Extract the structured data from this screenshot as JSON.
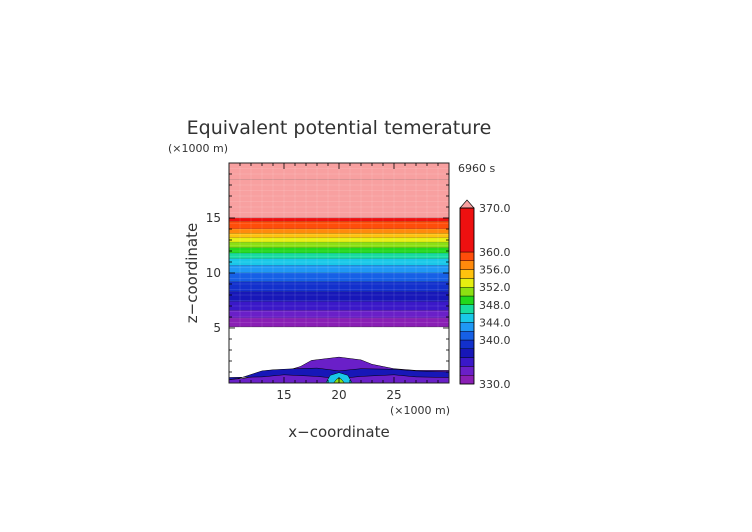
{
  "chart_data": {
    "type": "heatmap",
    "title": "Equivalent potential temerature",
    "time_label": "6960 s",
    "y_unit": "(×1000 m)",
    "x_unit": "(×1000 m)",
    "xlabel": "x−coordinate",
    "ylabel": "z−coordinate",
    "xlim": [
      10,
      30
    ],
    "ylim": [
      0,
      20
    ],
    "x_ticks": [
      15,
      20,
      25
    ],
    "y_ticks": [
      5,
      10,
      15
    ],
    "colorbar": {
      "min": 330,
      "max": 370,
      "tick_values": [
        330,
        340,
        344,
        348,
        352,
        356,
        360,
        370
      ],
      "tick_labels": [
        "330.0",
        "340.0",
        "344.0",
        "348.0",
        "352.0",
        "356.0",
        "360.0",
        "370.0"
      ],
      "levels": [
        {
          "from": 330,
          "to": 332,
          "color": "#8a1fb5"
        },
        {
          "from": 332,
          "to": 334,
          "color": "#6a1fc8"
        },
        {
          "from": 334,
          "to": 336,
          "color": "#3a18c8"
        },
        {
          "from": 336,
          "to": 338,
          "color": "#1717b8"
        },
        {
          "from": 338,
          "to": 340,
          "color": "#1230cc"
        },
        {
          "from": 340,
          "to": 342,
          "color": "#1660e6"
        },
        {
          "from": 342,
          "to": 344,
          "color": "#1f98f5"
        },
        {
          "from": 344,
          "to": 346,
          "color": "#19c8e8"
        },
        {
          "from": 346,
          "to": 348,
          "color": "#17dca0"
        },
        {
          "from": 348,
          "to": 350,
          "color": "#22d81c"
        },
        {
          "from": 350,
          "to": 352,
          "color": "#8ce012"
        },
        {
          "from": 352,
          "to": 354,
          "color": "#e6ee10"
        },
        {
          "from": 354,
          "to": 356,
          "color": "#ffc20e"
        },
        {
          "from": 356,
          "to": 358,
          "color": "#ff8a0c"
        },
        {
          "from": 358,
          "to": 360,
          "color": "#ff4d0a"
        },
        {
          "from": 360,
          "to": 370,
          "color": "#ee1010"
        },
        {
          "from": 370,
          "to": 380,
          "color": "#f8a0a0"
        }
      ]
    },
    "vertical_bands": [
      {
        "z_from": 18.5,
        "z_to": 20.0,
        "value": 371
      },
      {
        "z_from": 15.0,
        "z_to": 18.5,
        "value": 371
      },
      {
        "z_from": 14.7,
        "z_to": 15.0,
        "value": 362
      },
      {
        "z_from": 14.0,
        "z_to": 14.7,
        "value": 359
      },
      {
        "z_from": 13.6,
        "z_to": 14.0,
        "value": 357
      },
      {
        "z_from": 13.2,
        "z_to": 13.6,
        "value": 355
      },
      {
        "z_from": 12.8,
        "z_to": 13.2,
        "value": 353
      },
      {
        "z_from": 12.3,
        "z_to": 12.8,
        "value": 351
      },
      {
        "z_from": 11.8,
        "z_to": 12.3,
        "value": 349
      },
      {
        "z_from": 11.3,
        "z_to": 11.8,
        "value": 347
      },
      {
        "z_from": 10.7,
        "z_to": 11.3,
        "value": 345
      },
      {
        "z_from": 10.0,
        "z_to": 10.7,
        "value": 343
      },
      {
        "z_from": 9.2,
        "z_to": 10.0,
        "value": 341
      },
      {
        "z_from": 8.3,
        "z_to": 9.2,
        "value": 339
      },
      {
        "z_from": 7.4,
        "z_to": 8.3,
        "value": 337
      },
      {
        "z_from": 6.6,
        "z_to": 7.4,
        "value": 335
      },
      {
        "z_from": 5.9,
        "z_to": 6.6,
        "value": 333
      },
      {
        "z_from": 5.1,
        "z_to": 5.9,
        "value": 331
      }
    ],
    "grid": true
  }
}
